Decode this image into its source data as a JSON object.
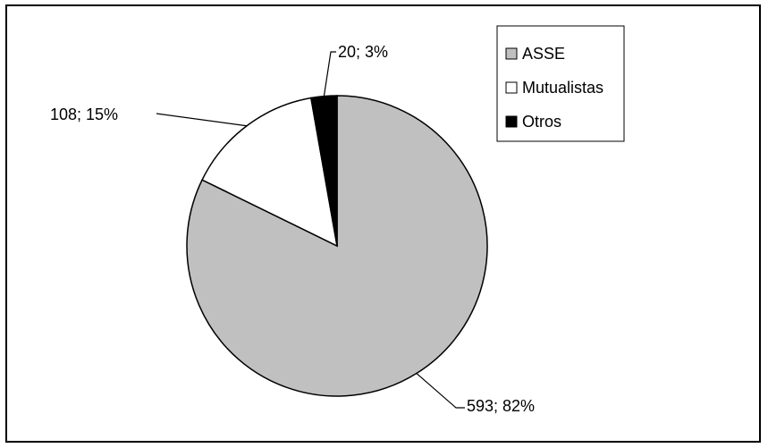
{
  "chart_data": {
    "type": "pie",
    "title": "",
    "categories": [
      "ASSE",
      "Mutualistas",
      "Otros"
    ],
    "values": [
      593,
      108,
      20
    ],
    "percentages": [
      82,
      15,
      3
    ],
    "data_labels": [
      "593; 82%",
      "108; 15%",
      "20; 3%"
    ],
    "colors": [
      "#c0c0c0",
      "#ffffff",
      "#000000"
    ],
    "legend": {
      "position": "top-right",
      "entries": [
        "ASSE",
        "Mutualistas",
        "Otros"
      ]
    }
  }
}
